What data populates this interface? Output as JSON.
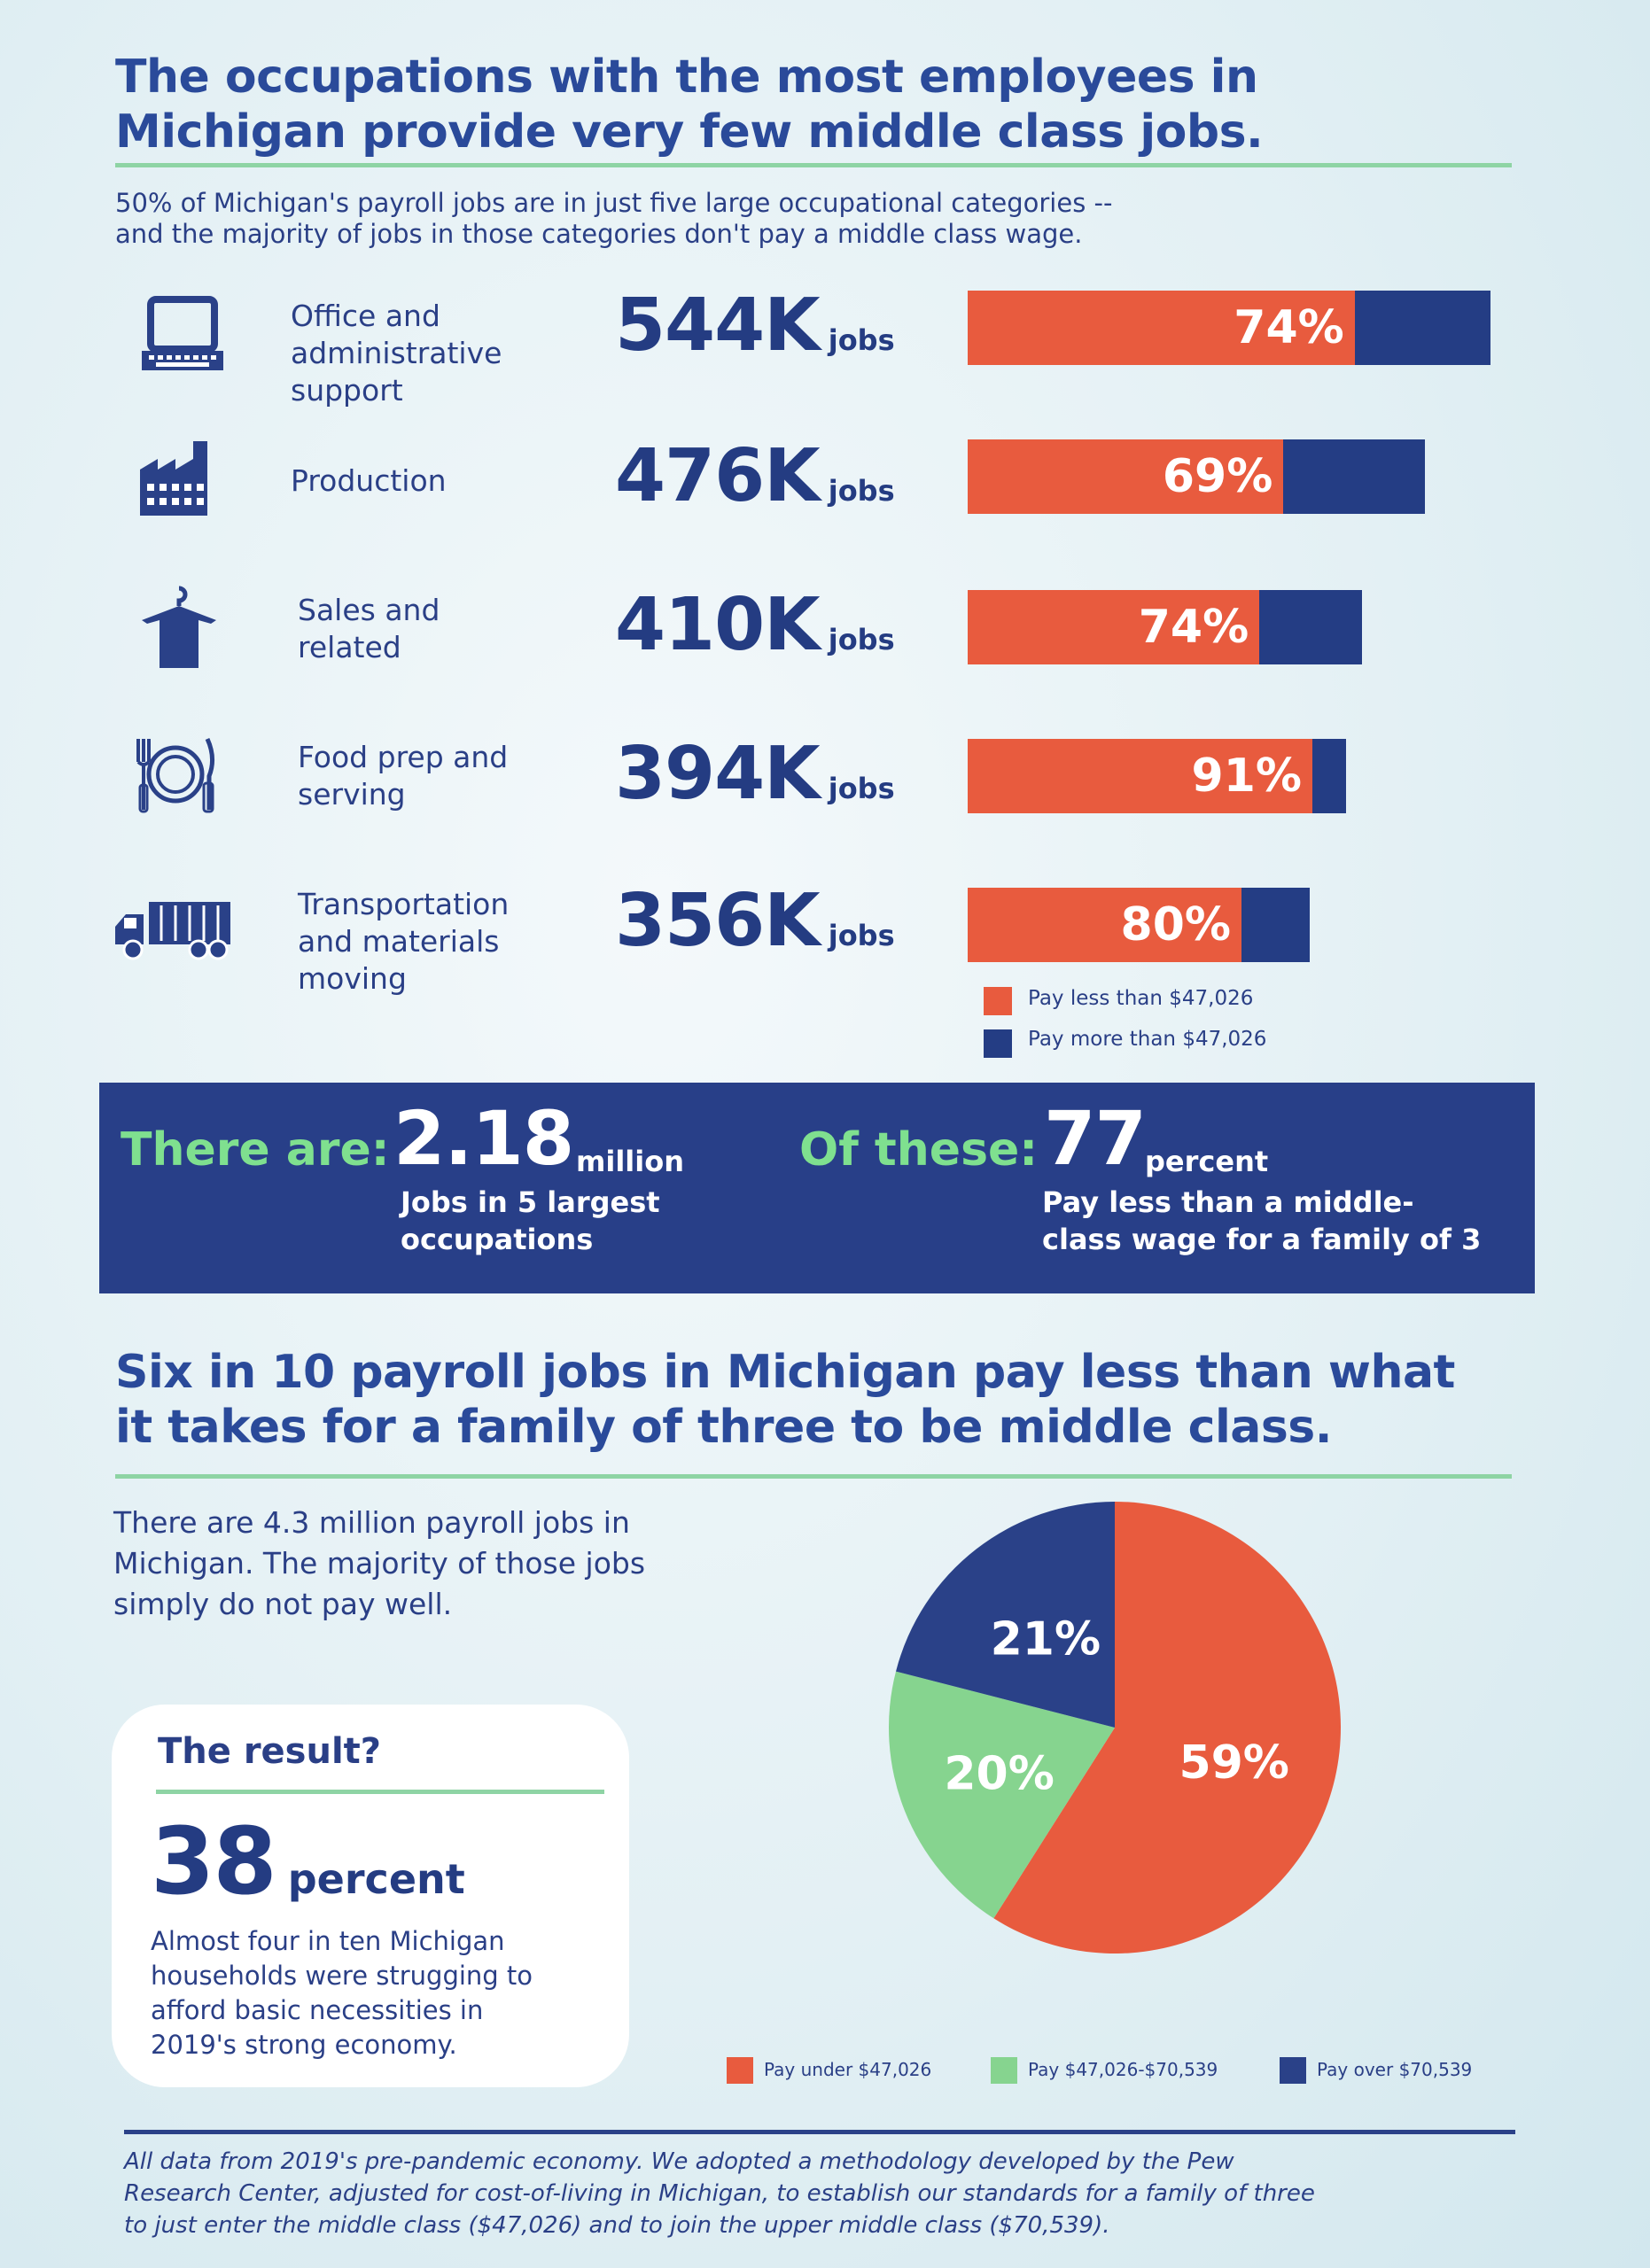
{
  "header": {
    "title_line1": "The occupations with the most employees in",
    "title_line2": "Michigan provide very few middle class jobs.",
    "subtitle_line1": "50% of Michigan's payroll jobs are in just five large occupational categories --",
    "subtitle_line2": "and the majority of jobs in those categories don't pay a middle class wage."
  },
  "colors": {
    "low_pay": "#e85b3e",
    "high_pay": "#243d84",
    "mid_pay": "#86d48f",
    "accent_rule": "#8ed4a4"
  },
  "chart_data": [
    {
      "type": "bar",
      "orientation": "horizontal",
      "categories": [
        "Office and administrative support",
        "Production",
        "Sales and related",
        "Food prep and serving",
        "Transportation and materials moving"
      ],
      "jobs_label": [
        "544K",
        "476K",
        "410K",
        "394K",
        "356K"
      ],
      "jobs_unit": "jobs",
      "total_jobs_thousands": [
        544,
        476,
        410,
        394,
        356
      ],
      "pay_less_percent": [
        74,
        69,
        74,
        91,
        80
      ],
      "percent_labels": [
        "74%",
        "69%",
        "74%",
        "91%",
        "80%"
      ],
      "series": [
        {
          "name": "Pay less than $47,026",
          "color": "#e85b3e"
        },
        {
          "name": "Pay more than $47,026",
          "color": "#243d84"
        }
      ],
      "legend_position": "bottom-right"
    },
    {
      "type": "pie",
      "labels": [
        "Pay under $47,026",
        "Pay $47,026-$70,539",
        "Pay over $70,539"
      ],
      "values": [
        59,
        20,
        21
      ],
      "value_labels": [
        "59%",
        "20%",
        "21%"
      ],
      "colors": [
        "#e85b3e",
        "#86d48f",
        "#2a4188"
      ],
      "legend_position": "bottom"
    }
  ],
  "rows": [
    {
      "label_lines": [
        "Office and",
        "administrative",
        "support"
      ],
      "icon": "computer-icon"
    },
    {
      "label_lines": [
        "Production"
      ],
      "icon": "factory-icon"
    },
    {
      "label_lines": [
        "Sales and",
        "related"
      ],
      "icon": "shirt-hanger-icon"
    },
    {
      "label_lines": [
        "Food prep and",
        "serving"
      ],
      "icon": "plate-cutlery-icon"
    },
    {
      "label_lines": [
        "Transportation",
        "and materials",
        "moving"
      ],
      "icon": "truck-icon"
    }
  ],
  "bar_legend": {
    "low": "Pay less than $47,026",
    "high": "Pay more than $47,026"
  },
  "banner": {
    "left_lead": "There are:",
    "left_value": "2.18",
    "left_unit": "million",
    "left_desc_1": "Jobs in 5 largest",
    "left_desc_2": "occupations",
    "right_lead": "Of these:",
    "right_value": "77",
    "right_unit": "percent",
    "right_desc_1": "Pay less than a middle-",
    "right_desc_2": "class wage for a family of 3"
  },
  "section2": {
    "title_line1": "Six in 10 payroll jobs in Michigan pay less than what",
    "title_line2": "it takes for a family of three to be middle class.",
    "intro_line1": "There are 4.3 million payroll jobs in",
    "intro_line2": "Michigan. The majority of those jobs",
    "intro_line3": "simply do not pay well."
  },
  "result": {
    "heading": "The result?",
    "value": "38",
    "unit": "percent",
    "desc_1": "Almost four in ten Michigan",
    "desc_2": "households were strugging to",
    "desc_3": "afford basic necessities in",
    "desc_4": "2019's strong economy."
  },
  "pie_legend": {
    "low": "Pay under $47,026",
    "mid": "Pay $47,026-$70,539",
    "high": "Pay over $70,539"
  },
  "footer": {
    "line1": "All data from 2019's pre-pandemic economy. We adopted a methodology developed by the Pew",
    "line2": "Research Center, adjusted for cost-of-living in Michigan, to establish our standards for a family of three",
    "line3": "to just enter the middle class ($47,026) and to join the upper middle class ($70,539)."
  }
}
